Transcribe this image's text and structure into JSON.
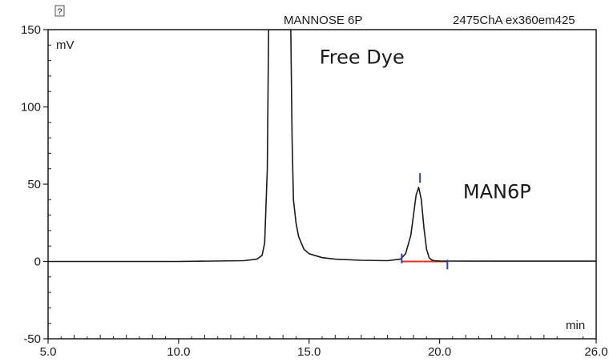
{
  "chart_data": {
    "type": "line",
    "header": {
      "sample_name": "MANNOSE 6P",
      "channel": "2475ChA ex360em425"
    },
    "ylabel": "mV",
    "xlabel": "min",
    "xlim": [
      5.0,
      26.0
    ],
    "ylim": [
      -50,
      150
    ],
    "x_ticks": [
      "5.0",
      "10.0",
      "15.0",
      "20.0",
      "26.0"
    ],
    "x_tick_values": [
      5.0,
      10.0,
      15.0,
      20.0,
      26.0
    ],
    "y_ticks": [
      "150",
      "100",
      "50",
      "0",
      "-50"
    ],
    "y_tick_values": [
      150,
      100,
      50,
      0,
      -50
    ],
    "grid": false,
    "colors": {
      "trace": "#1a1a1a",
      "baseline": "#e0322a",
      "marker": "#2a3fc9"
    },
    "series": [
      {
        "x": [
          5.0,
          10.0,
          12.5,
          13.0,
          13.2,
          13.3,
          13.4,
          13.45,
          13.5,
          13.6,
          13.8,
          14.0,
          14.2,
          14.3,
          14.35,
          14.4,
          14.5,
          14.6,
          14.8,
          15.0,
          15.5,
          16.0,
          17.0,
          18.0,
          18.5,
          18.7,
          18.9,
          19.0,
          19.1,
          19.2,
          19.3,
          19.4,
          19.5,
          19.6,
          19.7,
          19.8,
          20.0,
          22.0,
          26.0
        ],
        "y": [
          0,
          0,
          0.5,
          1.5,
          4,
          12,
          60,
          150,
          150,
          150,
          150,
          150,
          150,
          150,
          80,
          40,
          25,
          16,
          8,
          5,
          2.5,
          1.5,
          0.8,
          0.5,
          1.5,
          5,
          17,
          30,
          43,
          48,
          40,
          22,
          8,
          2.5,
          1,
          0.5,
          0.3,
          0.2,
          0.2
        ]
      }
    ],
    "baseline_segment": {
      "x": [
        18.55,
        20.3
      ],
      "y": [
        0,
        0
      ]
    },
    "markers": [
      {
        "x": 18.55,
        "y": 2
      },
      {
        "x": 19.25,
        "y": 54
      },
      {
        "x": 20.3,
        "y": -2
      }
    ],
    "annotations": [
      {
        "text": "Free Dye",
        "x": 15.4,
        "y": 128
      },
      {
        "text": "MAN6P",
        "x": 20.9,
        "y": 41
      }
    ]
  }
}
